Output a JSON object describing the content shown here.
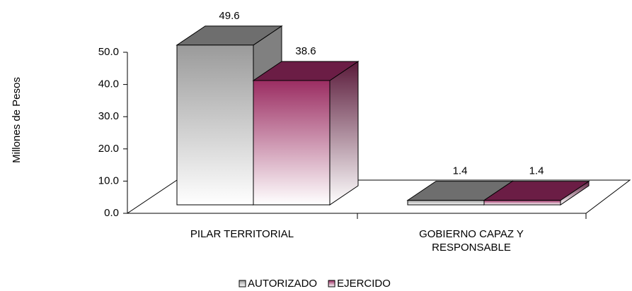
{
  "chart_data": {
    "type": "bar3d",
    "y_label": "Millones de Pesos",
    "categories": [
      "PILAR TERRITORIAL",
      "GOBIERNO CAPAZ Y RESPONSABLE"
    ],
    "series": [
      {
        "name": "AUTORIZADO",
        "color": "#999999",
        "values": [
          49.6,
          1.4
        ]
      },
      {
        "name": "EJERCIDO",
        "color": "#8e2a5c",
        "values": [
          38.6,
          1.4
        ]
      }
    ],
    "ylim": [
      0,
      50
    ],
    "yticks": [
      {
        "value": 0,
        "label": "0.0"
      },
      {
        "value": 10,
        "label": "10.0"
      },
      {
        "value": 20,
        "label": "20.0"
      },
      {
        "value": 30,
        "label": "30.0"
      },
      {
        "value": 40,
        "label": "40.0"
      },
      {
        "value": 50,
        "label": "50.0"
      }
    ],
    "legend": "bottom"
  }
}
